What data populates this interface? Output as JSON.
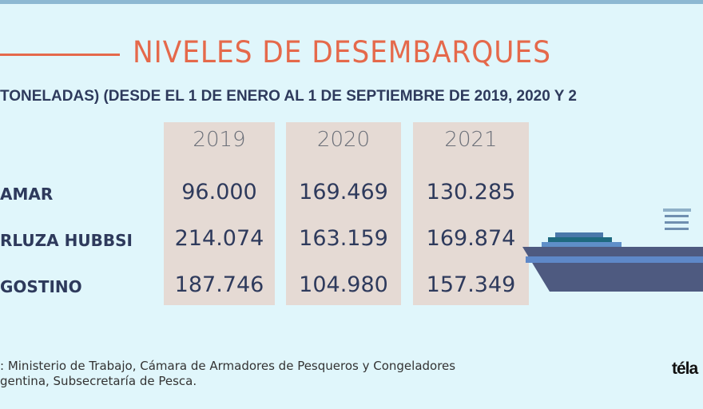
{
  "title": "NIVELES DE DESEMBARQUES",
  "subtitle": "TONELADAS) (DESDE EL 1 DE ENERO AL 1 DE SEPTIEMBRE DE 2019, 2020 Y 2",
  "source": {
    "line1": ": Ministerio de Trabajo, Cámara de Armadores de Pesqueros y Congeladores",
    "line2": "gentina, Subsecretaría de Pesca."
  },
  "logo": "téla",
  "colors": {
    "accent": "#e5694b",
    "text": "#2e3a5c",
    "column": "#e5dad4",
    "background": "#e0f6fb"
  },
  "chart_data": {
    "type": "table",
    "title": "NIVELES DE DESEMBARQUES",
    "columns": [
      "2019",
      "2020",
      "2021"
    ],
    "rows": [
      {
        "label": "AMAR",
        "values": [
          "96.000",
          "169.469",
          "130.285"
        ]
      },
      {
        "label": "RLUZA HUBBSI",
        "values": [
          "214.074",
          "163.159",
          "169.874"
        ]
      },
      {
        "label": "GOSTINO",
        "values": [
          "187.746",
          "104.980",
          "157.349"
        ]
      }
    ]
  }
}
